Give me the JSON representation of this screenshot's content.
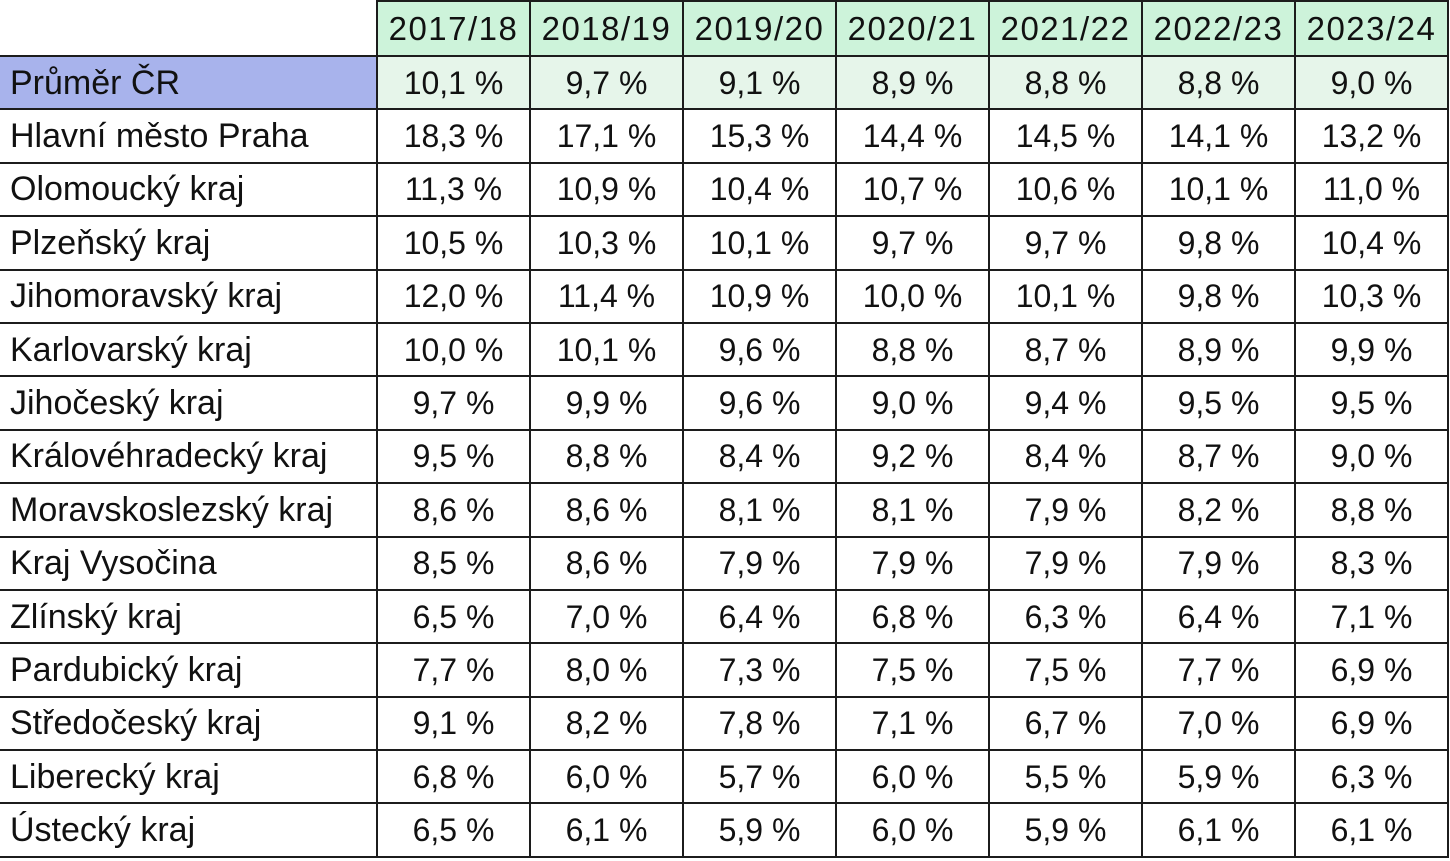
{
  "colors": {
    "header_fill": "#cdf3da",
    "average_label_fill": "#a8b3ec",
    "average_row_fill": "#e6f5ea",
    "border": "#1c1c1c",
    "text": "#111111"
  },
  "chart_data": {
    "type": "table",
    "columns": [
      "2017/18",
      "2018/19",
      "2019/20",
      "2020/21",
      "2021/22",
      "2022/23",
      "2023/24"
    ],
    "rows": [
      {
        "label": "Průměr ČR",
        "values": [
          "10,1 %",
          "9,7 %",
          "9,1 %",
          "8,9 %",
          "8,8 %",
          "8,8 %",
          "9,0 %"
        ]
      },
      {
        "label": "Hlavní město Praha",
        "values": [
          "18,3 %",
          "17,1 %",
          "15,3 %",
          "14,4 %",
          "14,5 %",
          "14,1 %",
          "13,2 %"
        ]
      },
      {
        "label": "Olomoucký kraj",
        "values": [
          "11,3 %",
          "10,9 %",
          "10,4 %",
          "10,7 %",
          "10,6 %",
          "10,1 %",
          "11,0 %"
        ]
      },
      {
        "label": "Plzeňský kraj",
        "values": [
          "10,5 %",
          "10,3 %",
          "10,1 %",
          "9,7 %",
          "9,7 %",
          "9,8 %",
          "10,4 %"
        ]
      },
      {
        "label": "Jihomoravský kraj",
        "values": [
          "12,0 %",
          "11,4 %",
          "10,9 %",
          "10,0 %",
          "10,1 %",
          "9,8 %",
          "10,3 %"
        ]
      },
      {
        "label": "Karlovarský kraj",
        "values": [
          "10,0 %",
          "10,1 %",
          "9,6 %",
          "8,8 %",
          "8,7 %",
          "8,9 %",
          "9,9 %"
        ]
      },
      {
        "label": "Jihočeský kraj",
        "values": [
          "9,7 %",
          "9,9 %",
          "9,6 %",
          "9,0 %",
          "9,4 %",
          "9,5 %",
          "9,5 %"
        ]
      },
      {
        "label": "Královéhradecký kraj",
        "values": [
          "9,5 %",
          "8,8 %",
          "8,4 %",
          "9,2 %",
          "8,4 %",
          "8,7 %",
          "9,0 %"
        ]
      },
      {
        "label": "Moravskoslezský kraj",
        "values": [
          "8,6 %",
          "8,6 %",
          "8,1 %",
          "8,1 %",
          "7,9 %",
          "8,2 %",
          "8,8 %"
        ]
      },
      {
        "label": "Kraj Vysočina",
        "values": [
          "8,5 %",
          "8,6 %",
          "7,9 %",
          "7,9 %",
          "7,9 %",
          "7,9 %",
          "8,3 %"
        ]
      },
      {
        "label": "Zlínský kraj",
        "values": [
          "6,5 %",
          "7,0 %",
          "6,4 %",
          "6,8 %",
          "6,3 %",
          "6,4 %",
          "7,1 %"
        ]
      },
      {
        "label": "Pardubický kraj",
        "values": [
          "7,7 %",
          "8,0 %",
          "7,3 %",
          "7,5 %",
          "7,5 %",
          "7,7 %",
          "6,9 %"
        ]
      },
      {
        "label": "Středočeský kraj",
        "values": [
          "9,1 %",
          "8,2 %",
          "7,8 %",
          "7,1 %",
          "6,7 %",
          "7,0 %",
          "6,9 %"
        ]
      },
      {
        "label": "Liberecký kraj",
        "values": [
          "6,8 %",
          "6,0 %",
          "5,7 %",
          "6,0 %",
          "5,5 %",
          "5,9 %",
          "6,3 %"
        ]
      },
      {
        "label": "Ústecký kraj",
        "values": [
          "6,5 %",
          "6,1 %",
          "5,9 %",
          "6,0 %",
          "5,9 %",
          "6,1 %",
          "6,1 %"
        ]
      }
    ]
  }
}
